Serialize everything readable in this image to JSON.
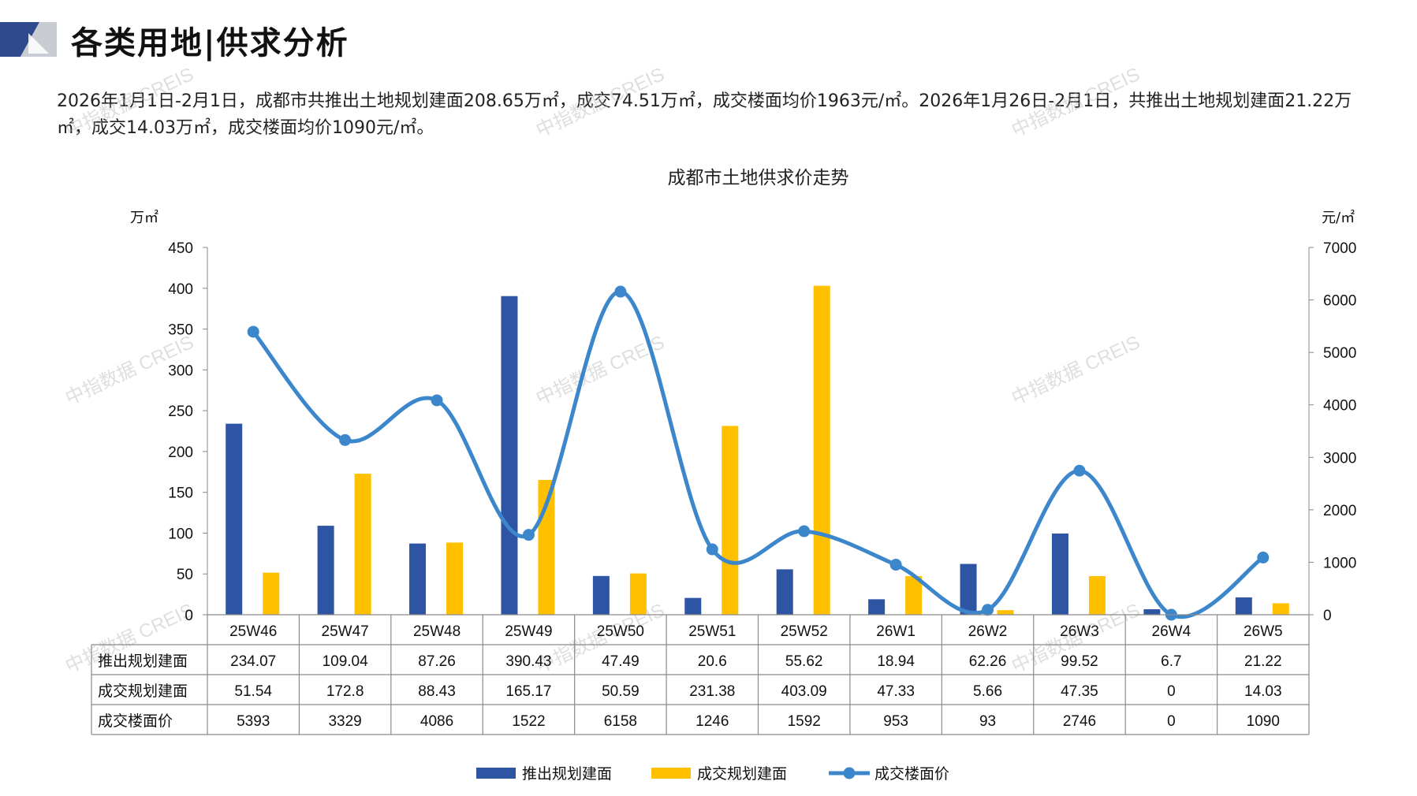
{
  "header": {
    "title": "各类用地|供求分析"
  },
  "summary": {
    "text": "2026年1月1日-2月1日，成都市共推出土地规划建面208.65万㎡，成交74.51万㎡，成交楼面均价1963元/㎡。2026年1月26日-2月1日，共推出土地规划建面21.22万㎡，成交14.03万㎡，成交楼面均价1090元/㎡。"
  },
  "watermark": "中指数据 CREIS",
  "colors": {
    "supply": "#2E54A4",
    "deal": "#FFC000",
    "price": "#3C87CC",
    "logo_dark": "#2E4A8C",
    "logo_light": "#C9CCD3"
  },
  "chart_data": {
    "type": "bar",
    "title": "成都市土地供求价走势",
    "y_left_unit": "万㎡",
    "y_right_unit": "元/㎡",
    "ylim_left": [
      0,
      450
    ],
    "ylim_right": [
      0,
      7000
    ],
    "yticks_left": [
      "0",
      "50",
      "100",
      "150",
      "200",
      "250",
      "300",
      "350",
      "400",
      "450"
    ],
    "yticks_right": [
      "0",
      "1000",
      "2000",
      "3000",
      "4000",
      "5000",
      "6000",
      "7000"
    ],
    "categories": [
      "25W46",
      "25W47",
      "25W48",
      "25W49",
      "25W50",
      "25W51",
      "25W52",
      "26W1",
      "26W2",
      "26W3",
      "26W4",
      "26W5"
    ],
    "series": [
      {
        "name": "推出规划建面",
        "type": "bar",
        "axis": "left",
        "values": [
          234.07,
          109.04,
          87.26,
          390.43,
          47.49,
          20.6,
          55.62,
          18.94,
          62.26,
          99.52,
          6.7,
          21.22
        ],
        "labels": [
          "234.07",
          "109.04",
          "87.26",
          "390.43",
          "47.49",
          "20.6",
          "55.62",
          "18.94",
          "62.26",
          "99.52",
          "6.7",
          "21.22"
        ]
      },
      {
        "name": "成交规划建面",
        "type": "bar",
        "axis": "left",
        "values": [
          51.54,
          172.8,
          88.43,
          165.17,
          50.59,
          231.38,
          403.09,
          47.33,
          5.66,
          47.35,
          0,
          14.03
        ],
        "labels": [
          "51.54",
          "172.8",
          "88.43",
          "165.17",
          "50.59",
          "231.38",
          "403.09",
          "47.33",
          "5.66",
          "47.35",
          "0",
          "14.03"
        ]
      },
      {
        "name": "成交楼面价",
        "type": "line",
        "axis": "right",
        "values": [
          5393,
          3329,
          4086,
          1522,
          6158,
          1246,
          1592,
          953,
          93,
          2746,
          0,
          1090
        ],
        "labels": [
          "5393",
          "3329",
          "4086",
          "1522",
          "6158",
          "1246",
          "1592",
          "953",
          "93",
          "2746",
          "0",
          "1090"
        ]
      }
    ],
    "legend_position": "bottom"
  }
}
